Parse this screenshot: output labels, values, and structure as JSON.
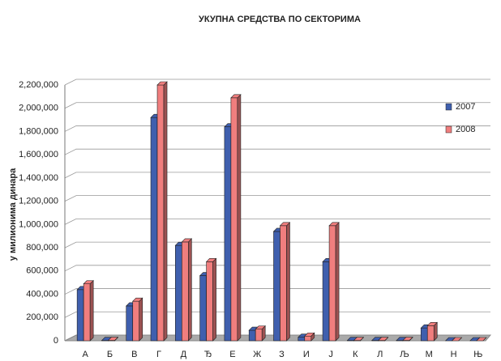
{
  "chart_data": {
    "type": "bar3d",
    "title": "УКУПНА СРЕДСТВА ПО СЕКТОРИМА",
    "y_label": "у милионима динара",
    "categories": [
      "А",
      "Б",
      "В",
      "Г",
      "Д",
      "Ђ",
      "Е",
      "Ж",
      "З",
      "И",
      "Ј",
      "К",
      "Л",
      "Љ",
      "М",
      "Н",
      "Њ"
    ],
    "series": [
      {
        "name": "2007",
        "color": "#3f5fae",
        "values": [
          440000,
          2000,
          300000,
          1920000,
          820000,
          560000,
          1840000,
          90000,
          940000,
          30000,
          680000,
          2000,
          2000,
          2000,
          110000,
          0,
          0
        ]
      },
      {
        "name": "2008",
        "color": "#f07e7e",
        "values": [
          490000,
          3000,
          340000,
          2200000,
          850000,
          680000,
          2090000,
          100000,
          990000,
          40000,
          990000,
          2000,
          2000,
          3000,
          130000,
          0,
          0
        ]
      }
    ],
    "ylim": [
      0,
      2200000
    ],
    "yticks": [
      {
        "value": 0,
        "label": "0"
      },
      {
        "value": 200000,
        "label": "200,000"
      },
      {
        "value": 400000,
        "label": "400,000"
      },
      {
        "value": 600000,
        "label": "600,000"
      },
      {
        "value": 800000,
        "label": "800,000"
      },
      {
        "value": 1000000,
        "label": "1,000,000"
      },
      {
        "value": 1200000,
        "label": "1,200,000"
      },
      {
        "value": 1400000,
        "label": "1,400,000"
      },
      {
        "value": 1600000,
        "label": "1,600,000"
      },
      {
        "value": 1800000,
        "label": "1,800,000"
      },
      {
        "value": 2000000,
        "label": "2,000,000"
      },
      {
        "value": 2200000,
        "label": "2,200,000"
      }
    ],
    "grid": true,
    "legend_position": "upper right"
  }
}
